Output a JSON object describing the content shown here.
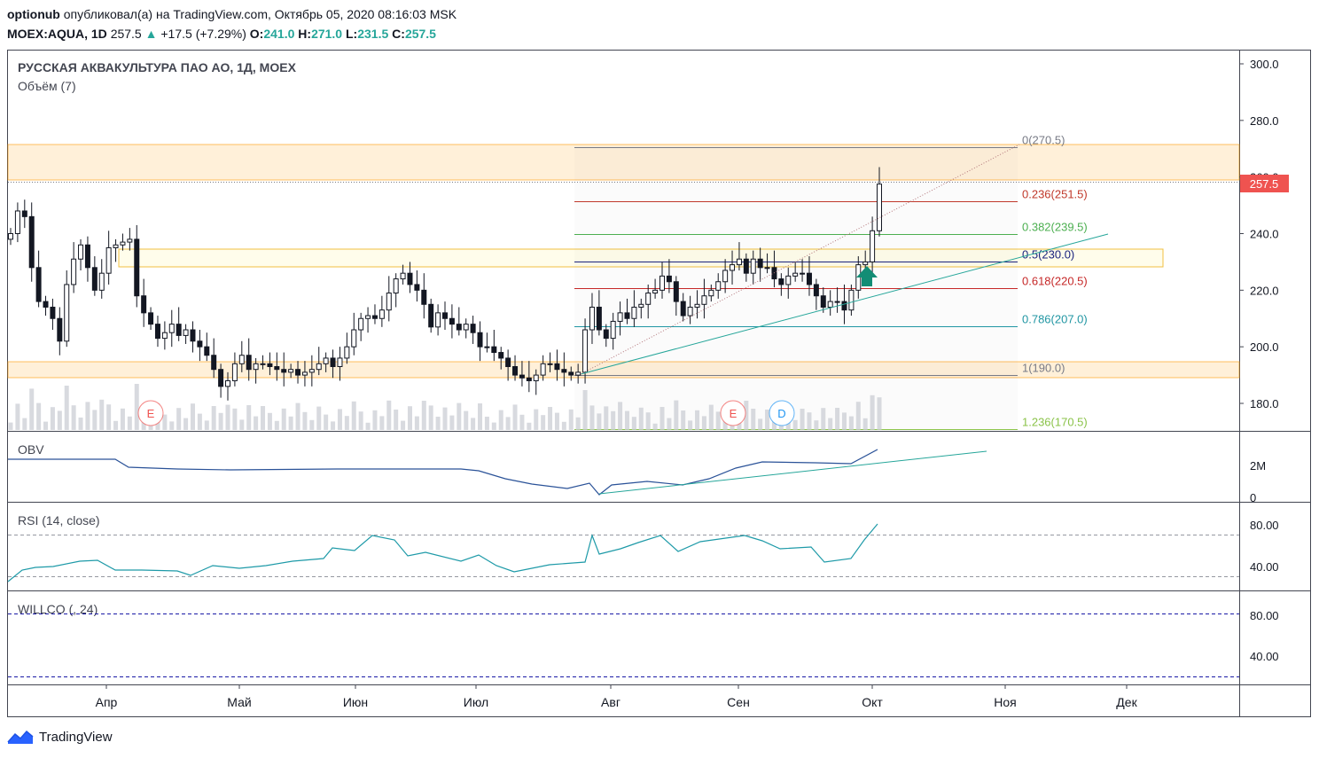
{
  "header": {
    "author": "optionub",
    "published_text": "опубликовал(а) на TradingView.com, Октябрь 05, 2020 08:16:03 MSK",
    "symbol": "MOEX:AQUA, 1D",
    "last": "257.5",
    "change": "+17.5 (+7.29%)",
    "o_label": "O:",
    "o_value": "241.0",
    "h_label": "H:",
    "h_value": "271.0",
    "l_label": "L:",
    "l_value": "231.5",
    "c_label": "C:",
    "c_value": "257.5"
  },
  "main_pane": {
    "title": "РУССКАЯ АКВАКУЛЬТУРА ПАО АО, 1Д, MOEX",
    "volume_label": "Объём (7)",
    "price_badge": "257.5",
    "price_ticks": [
      "300.0",
      "280.0",
      "260.0",
      "240.0",
      "220.0",
      "200.0",
      "180.0"
    ],
    "event_markers": [
      "E",
      "E",
      "D"
    ]
  },
  "fib_levels": [
    {
      "label": "0(270.5)",
      "color": "#787b86"
    },
    {
      "label": "0.236(251.5)",
      "color": "#c0392b"
    },
    {
      "label": "0.382(239.5)",
      "color": "#4caf50"
    },
    {
      "label": "0.5(230.0)",
      "color": "#1a237e"
    },
    {
      "label": "0.618(220.5)",
      "color": "#c62828"
    },
    {
      "label": "0.786(207.0)",
      "color": "#2196a3"
    },
    {
      "label": "1(190.0)",
      "color": "#787b86"
    },
    {
      "label": "1.236(170.5)",
      "color": "#8bc34a"
    }
  ],
  "obv_pane": {
    "title": "OBV",
    "ticks": [
      "2M",
      "0"
    ]
  },
  "rsi_pane": {
    "title": "RSI (14, close)",
    "ticks": [
      "80.00",
      "40.00"
    ]
  },
  "willco_pane": {
    "title": "WILLCO (, 24)",
    "ticks": [
      "80.00",
      "40.00"
    ]
  },
  "time_axis": [
    "Апр",
    "Май",
    "Июн",
    "Июл",
    "Авг",
    "Сен",
    "Окт",
    "Ноя",
    "Дек"
  ],
  "footer": {
    "brand": "TradingView"
  },
  "colors": {
    "up": "#ffffff",
    "down": "#131722",
    "zone": "#ff9800",
    "trend": "#26a69a",
    "badge": "#ef5350"
  },
  "chart_data": {
    "type": "candlestick",
    "title": "РУССКАЯ АКВАКУЛЬТУРА ПАО АО, 1Д, MOEX",
    "ylim": [
      170,
      305
    ],
    "x_axis_months": [
      "Апр",
      "Май",
      "Июн",
      "Июл",
      "Авг",
      "Сен",
      "Окт",
      "Ноя",
      "Дек"
    ],
    "series": [
      {
        "name": "Close (approx, daily)",
        "values": [
          240,
          248,
          246,
          228,
          216,
          214,
          210,
          202,
          222,
          231,
          236,
          228,
          220,
          226,
          235,
          236,
          237,
          238,
          218,
          212,
          208,
          203,
          205,
          208,
          204,
          206,
          202,
          200,
          197,
          192,
          186,
          188,
          194,
          197,
          192,
          194,
          194,
          193,
          192,
          191,
          192,
          190,
          191,
          192,
          194,
          196,
          193,
          196,
          200,
          206,
          210,
          211,
          210,
          213,
          219,
          224,
          226,
          222,
          220,
          215,
          207,
          212,
          210,
          208,
          206,
          208,
          205,
          200,
          200,
          198,
          196,
          193,
          190,
          189,
          188,
          190,
          194,
          194,
          192,
          191,
          190,
          191,
          206,
          214,
          206,
          203,
          209,
          212,
          210,
          214,
          215,
          219,
          220,
          225,
          223,
          216,
          211,
          214,
          215,
          218,
          220,
          223,
          227,
          229,
          231,
          226,
          231,
          228,
          228,
          224,
          222,
          225,
          226,
          226,
          222,
          218,
          214,
          216,
          216,
          213,
          220,
          229,
          230,
          241,
          257.5
        ]
      }
    ],
    "resistance_zone_top": [
      256,
      270
    ],
    "resistance_zone_mid": [
      228,
      234
    ],
    "support_zone": [
      189,
      194
    ],
    "fib_retracement": {
      "from": 190.0,
      "to": 270.5,
      "levels": [
        0,
        0.236,
        0.382,
        0.5,
        0.618,
        0.786,
        1,
        1.236
      ]
    },
    "obv_ylim": [
      0,
      3
    ],
    "rsi_levels": [
      70,
      30
    ],
    "willco_levels": [
      80,
      20
    ]
  }
}
